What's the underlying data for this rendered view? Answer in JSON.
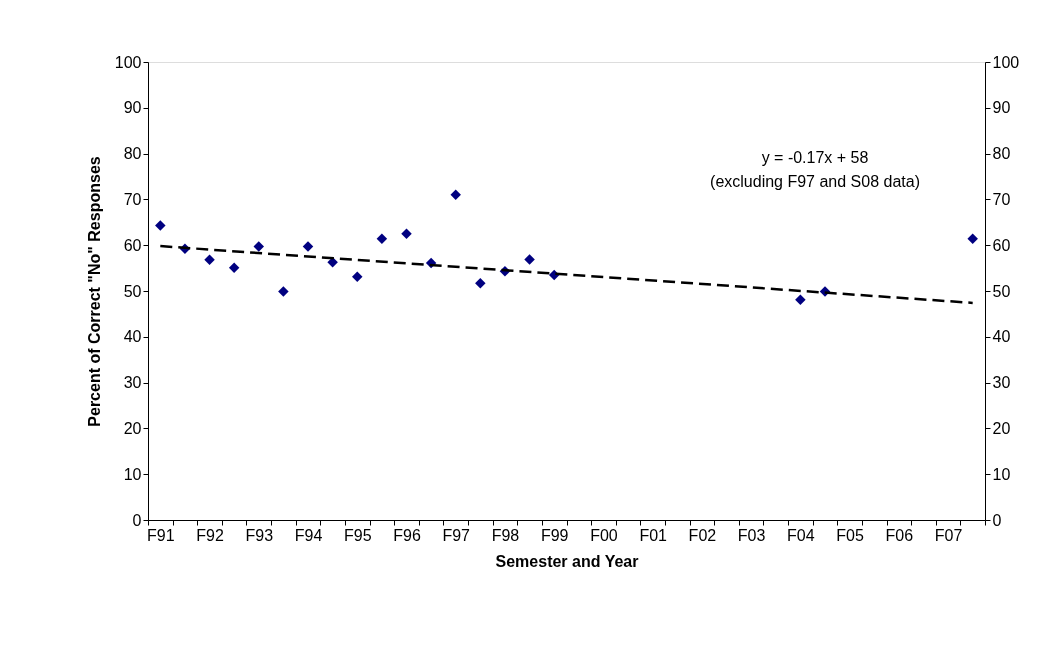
{
  "chart_data": {
    "type": "scatter",
    "xlabel": "Semester and Year",
    "ylabel": "Percent of Correct \"No\" Responses",
    "categories": [
      "F91",
      null,
      "F92",
      null,
      "F93",
      null,
      "F94",
      null,
      "F95",
      null,
      "F96",
      null,
      "F97",
      null,
      "F98",
      null,
      "F99",
      null,
      "F00",
      null,
      "F01",
      null,
      "F02",
      null,
      "F03",
      null,
      "F04",
      null,
      "F05",
      null,
      "F06",
      null,
      "F07",
      null
    ],
    "series": [
      {
        "color": "#000080",
        "marker": "diamond",
        "values": [
          64.3,
          59.2,
          56.8,
          55.1,
          59.7,
          49.9,
          59.7,
          56.3,
          53.1,
          61.4,
          62.5,
          56.1,
          71.0,
          51.7,
          54.3,
          56.9,
          53.5,
          null,
          null,
          null,
          null,
          null,
          null,
          null,
          null,
          null,
          48.1,
          49.9,
          null,
          null,
          null,
          null,
          null,
          61.4
        ]
      },
      {
        "type": "line",
        "color": "#000000",
        "line_style": "dashed",
        "marker": "none",
        "values": [
          59.8,
          null,
          null,
          null,
          null,
          null,
          null,
          null,
          null,
          null,
          null,
          null,
          null,
          null,
          null,
          null,
          null,
          null,
          null,
          null,
          null,
          null,
          null,
          null,
          null,
          null,
          null,
          null,
          null,
          null,
          null,
          null,
          null,
          47.4
        ]
      }
    ],
    "ylim": [
      0,
      100
    ],
    "yticks": [
      0,
      10,
      20,
      30,
      40,
      50,
      60,
      70,
      80,
      90,
      100
    ],
    "y2lim": [
      0,
      100
    ],
    "y2ticks": [
      0,
      10,
      20,
      30,
      40,
      50,
      60,
      70,
      80,
      90,
      100
    ],
    "annotations": [
      "y = -0.17x + 58",
      "(excluding F97 and S08 data)"
    ],
    "grid": false
  }
}
